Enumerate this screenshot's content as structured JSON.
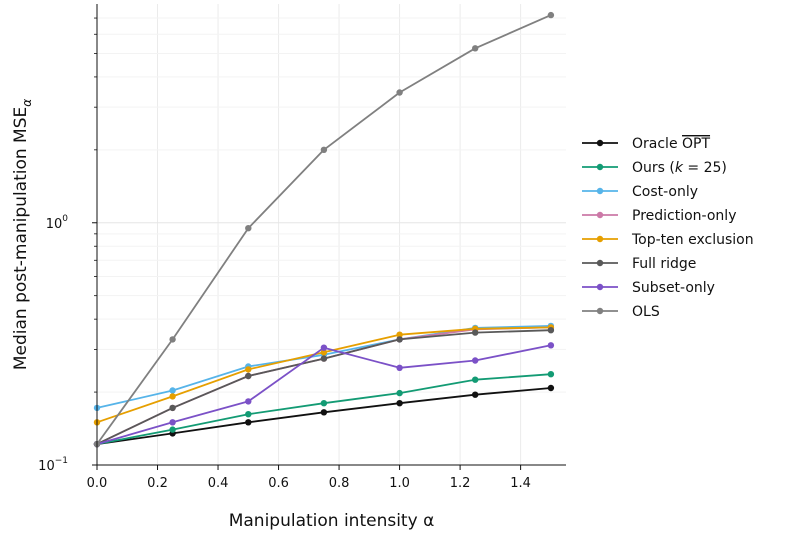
{
  "chart_data": {
    "type": "line",
    "xlabel": "Manipulation intensity α",
    "ylabel": "Median post-manipulation MSE",
    "ylabel_subscript": "α",
    "xlim": [
      0.0,
      1.55
    ],
    "ylim": [
      0.1,
      8.0
    ],
    "y_scale": "log",
    "x_ticks": [
      "0.0",
      "0.2",
      "0.4",
      "0.6",
      "0.8",
      "1.0",
      "1.2",
      "1.4"
    ],
    "y_ticks": [
      {
        "value": 0.1,
        "base": "10",
        "exp": "−1"
      },
      {
        "value": 1.0,
        "base": "10",
        "exp": "0"
      }
    ],
    "grid": true,
    "legend_position": "right",
    "x": [
      0.0,
      0.25,
      0.5,
      0.75,
      1.0,
      1.25,
      1.5
    ],
    "series": [
      {
        "name": "Oracle OPT",
        "label_main": "Oracle ",
        "label_overline": "OPT",
        "color": "#111111",
        "values": [
          0.122,
          0.135,
          0.15,
          0.165,
          0.18,
          0.195,
          0.208
        ]
      },
      {
        "name": "Ours (k = 25)",
        "label_main": "Ours (",
        "label_italic": "k",
        "label_tail": " = 25)",
        "color": "#139b74",
        "values": [
          0.122,
          0.14,
          0.162,
          0.18,
          0.198,
          0.225,
          0.237
        ]
      },
      {
        "name": "Cost-only",
        "color": "#56b4e9",
        "values": [
          0.172,
          0.203,
          0.255,
          0.285,
          0.33,
          0.368,
          0.375
        ]
      },
      {
        "name": "Prediction-only",
        "color": "#cc79a7",
        "values": [
          0.122,
          0.172,
          0.233,
          0.275,
          0.33,
          0.363,
          0.37
        ]
      },
      {
        "name": "Top-ten exclusion",
        "color": "#e69f00",
        "values": [
          0.15,
          0.192,
          0.248,
          0.292,
          0.345,
          0.365,
          0.37
        ]
      },
      {
        "name": "Full ridge",
        "color": "#595959",
        "values": [
          0.122,
          0.172,
          0.233,
          0.275,
          0.33,
          0.352,
          0.36
        ]
      },
      {
        "name": "Subset-only",
        "color": "#7b51c7",
        "values": [
          0.122,
          0.15,
          0.183,
          0.305,
          0.252,
          0.27,
          0.312
        ]
      },
      {
        "name": "OLS",
        "color": "#808080",
        "values": [
          0.122,
          0.33,
          0.95,
          2.0,
          3.45,
          5.25,
          7.2
        ]
      }
    ]
  }
}
